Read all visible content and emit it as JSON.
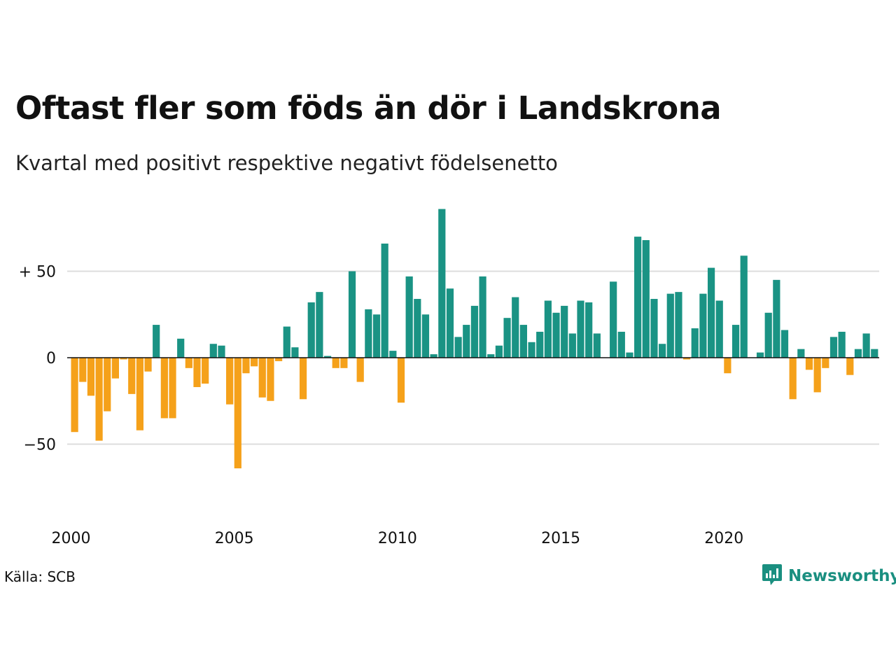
{
  "title": "Oftast fler som föds än dör i Landskrona",
  "subtitle": "Kvartal med positivt respektive negativt födelsenetto",
  "source": "Källa: SCB",
  "brand": {
    "name": "Newsworthy",
    "icon": "newsworthy-logo-icon",
    "color": "#1a8f80"
  },
  "colors": {
    "positive": "#1a9384",
    "negative": "#f5a11a",
    "grid": "#dddddd",
    "zero": "#111111"
  },
  "chart_data": {
    "type": "bar",
    "title": "Oftast fler som föds än dör i Landskrona",
    "subtitle": "Kvartal med positivt respektive negativt födelsenetto",
    "xlabel": "",
    "ylabel": "",
    "ylim": [
      -75,
      90
    ],
    "yticks": [
      -50,
      0,
      50
    ],
    "ytick_labels": [
      "−50",
      "0",
      "+ 50"
    ],
    "xticks": [
      2000,
      2005,
      2010,
      2015,
      2020
    ],
    "grid": true,
    "start_year": 2000,
    "periods_per_year": 4,
    "values": [
      -43,
      -14,
      -22,
      -48,
      -31,
      -12,
      -1,
      -21,
      -42,
      -8,
      19,
      -35,
      -35,
      11,
      -6,
      -17,
      -15,
      8,
      7,
      -27,
      -64,
      -9,
      -5,
      -23,
      -25,
      -2,
      18,
      6,
      -24,
      32,
      38,
      1,
      -6,
      -6,
      50,
      -14,
      28,
      25,
      66,
      4,
      -26,
      47,
      34,
      25,
      2,
      86,
      40,
      12,
      19,
      30,
      47,
      2,
      7,
      23,
      35,
      19,
      9,
      15,
      33,
      26,
      30,
      14,
      33,
      32,
      14,
      0,
      44,
      15,
      3,
      70,
      68,
      34,
      8,
      37,
      38,
      -1,
      17,
      37,
      52,
      33,
      -9,
      19,
      59,
      0,
      3,
      26,
      45,
      16,
      -24,
      5,
      -7,
      -20,
      -6,
      12,
      15,
      -10,
      5,
      14,
      5
    ]
  }
}
